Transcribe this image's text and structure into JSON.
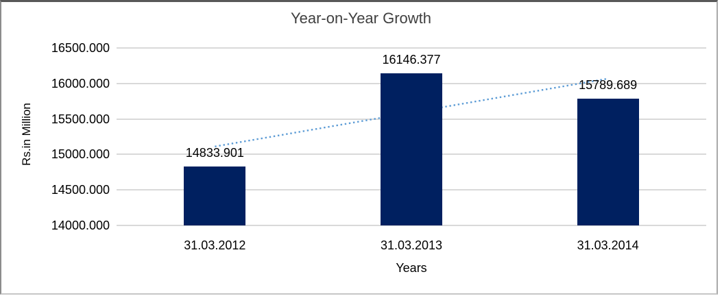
{
  "chart_data": {
    "type": "bar",
    "title": "Year-on-Year Growth",
    "categories": [
      "31.03.2012",
      "31.03.2013",
      "31.03.2014"
    ],
    "values": [
      14833.901,
      16146.377,
      15789.689
    ],
    "value_labels": [
      "14833.901",
      "16146.377",
      "15789.689"
    ],
    "xlabel": "Years",
    "ylabel": "Rs.in Million",
    "ylim": [
      14000,
      16500
    ],
    "ytick_step": 500,
    "ytick_labels": [
      "16500.000",
      "16000.000",
      "15500.000",
      "15000.000",
      "14500.000",
      "14000.000"
    ],
    "grid": true,
    "legend": "none",
    "bar_color": "#002060",
    "trendline": {
      "type": "linear",
      "style": "dotted",
      "color": "#5b9bd5"
    },
    "colors": {
      "background": "#ffffff",
      "gridline": "#d9d9d9",
      "tick_text": "#000000",
      "title_text": "#404040",
      "frame_border": "#8c8c8c"
    }
  }
}
